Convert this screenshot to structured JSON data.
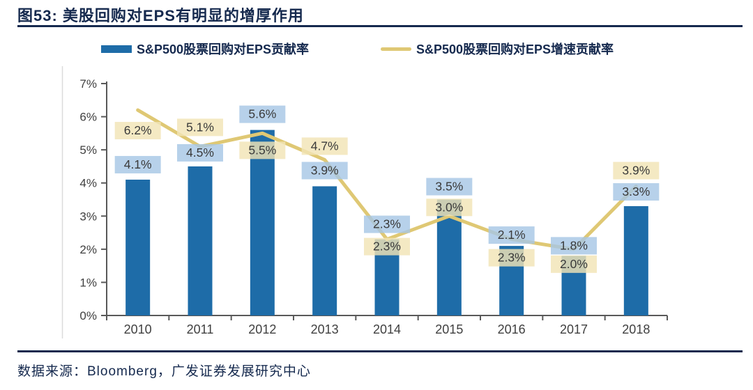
{
  "page": {
    "title": "图53:  美股回购对EPS有明显的增厚作用",
    "source": "数据来源：Bloomberg，广发证券发展研究中心"
  },
  "chart_data": {
    "type": "bar",
    "subtype": "bar+line combo",
    "title": "美股回购对EPS有明显的增厚作用",
    "categories": [
      "2010",
      "2011",
      "2012",
      "2013",
      "2014",
      "2015",
      "2016",
      "2017",
      "2018"
    ],
    "series": [
      {
        "name": "S&P500股票回购对EPS贡献率",
        "type": "bar",
        "color": "#1E6CA8",
        "label_bg": "#A7C7E5",
        "values": [
          4.1,
          4.5,
          5.6,
          3.9,
          2.3,
          3.5,
          2.1,
          1.8,
          3.3
        ],
        "labels": [
          "4.1%",
          "4.5%",
          "5.6%",
          "3.9%",
          "2.3%",
          "3.5%",
          "2.1%",
          "1.8%",
          "3.3%"
        ]
      },
      {
        "name": "S&P500股票回购对EPS增速贡献率",
        "type": "line",
        "color": "#DFC874",
        "label_bg": "#F2E4B6",
        "values": [
          6.2,
          5.1,
          5.5,
          4.7,
          2.3,
          3.0,
          2.3,
          2.0,
          3.9
        ],
        "labels": [
          "6.2%",
          "5.1%",
          "5.5%",
          "4.7%",
          "2.3%",
          "3.0%",
          "2.3%",
          "2.0%",
          "3.9%"
        ]
      }
    ],
    "xlabel": "",
    "ylabel": "",
    "ylim": [
      0,
      7
    ],
    "y_ticks": [
      "0%",
      "1%",
      "2%",
      "3%",
      "4%",
      "5%",
      "6%",
      "7%"
    ],
    "grid": false,
    "legend_position": "top",
    "axis_color": "#595959",
    "tick_label_color": "#404040",
    "data_label_color": "#3A3A3A"
  }
}
